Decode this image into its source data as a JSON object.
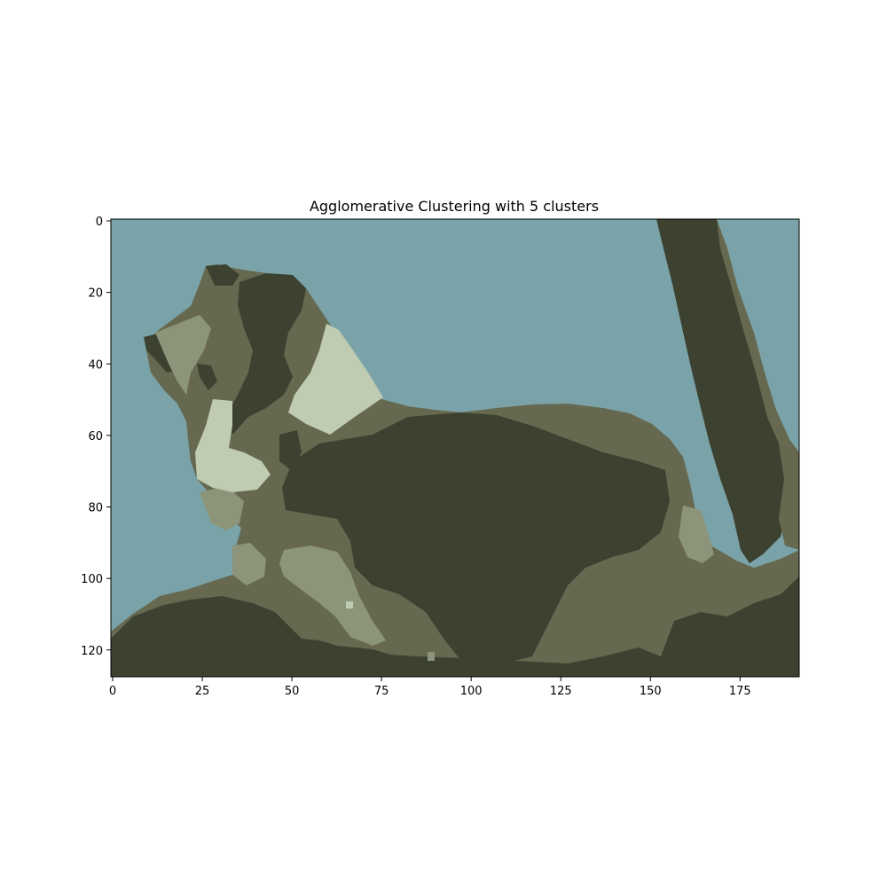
{
  "chart_data": {
    "type": "heatmap",
    "title": "Agglomerative Clustering with 5 clusters",
    "xlabel": "",
    "ylabel": "",
    "image_width": 192,
    "image_height": 128,
    "n_clusters": 5,
    "x_ticks": [
      0,
      25,
      50,
      75,
      100,
      125,
      150,
      175
    ],
    "y_ticks": [
      0,
      20,
      40,
      60,
      80,
      100,
      120
    ],
    "xlim": [
      -0.5,
      191.5
    ],
    "ylim": [
      127.5,
      -0.5
    ],
    "grid": false,
    "cluster_colors": [
      "#7aa3a9",
      "#3d4130",
      "#66694f",
      "#8c9479",
      "#bfccb2"
    ]
  }
}
